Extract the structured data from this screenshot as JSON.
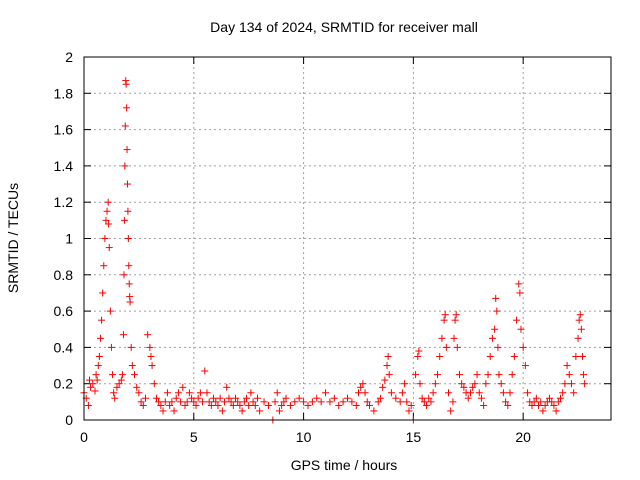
{
  "chart_data": {
    "type": "scatter",
    "title": "Day 134 of 2024, SRMTID for receiver mall",
    "xlabel": "GPS time / hours",
    "ylabel": "SRMTID / TECUs",
    "xlim": [
      0,
      24
    ],
    "ylim": [
      0,
      2
    ],
    "x_ticks": [
      0,
      5,
      10,
      15,
      20
    ],
    "y_ticks": [
      0,
      0.2,
      0.4,
      0.6,
      0.8,
      1,
      1.2,
      1.4,
      1.6,
      1.8,
      2
    ],
    "x_tick_labels": [
      "0",
      "5",
      "10",
      "15",
      "20"
    ],
    "y_tick_labels": [
      "0",
      "0.2",
      "0.4",
      "0.6",
      "0.8",
      "1",
      "1.2",
      "1.4",
      "1.6",
      "1.8",
      "2"
    ],
    "grid": true,
    "marker": "plus",
    "color": "#ff0000",
    "series": [
      {
        "name": "SRMTID",
        "points": [
          [
            0.0,
            0.15
          ],
          [
            0.1,
            0.12
          ],
          [
            0.2,
            0.08
          ],
          [
            0.25,
            0.22
          ],
          [
            0.3,
            0.18
          ],
          [
            0.4,
            0.2
          ],
          [
            0.5,
            0.16
          ],
          [
            0.55,
            0.25
          ],
          [
            0.6,
            0.22
          ],
          [
            0.65,
            0.3
          ],
          [
            0.7,
            0.35
          ],
          [
            0.75,
            0.45
          ],
          [
            0.8,
            0.55
          ],
          [
            0.85,
            0.7
          ],
          [
            0.9,
            0.85
          ],
          [
            0.95,
            1.0
          ],
          [
            1.0,
            1.1
          ],
          [
            1.05,
            1.15
          ],
          [
            1.1,
            1.2
          ],
          [
            1.12,
            1.08
          ],
          [
            1.15,
            0.95
          ],
          [
            1.2,
            0.6
          ],
          [
            1.25,
            0.4
          ],
          [
            1.3,
            0.25
          ],
          [
            1.35,
            0.15
          ],
          [
            1.4,
            0.12
          ],
          [
            1.5,
            0.18
          ],
          [
            1.6,
            0.2
          ],
          [
            1.7,
            0.22
          ],
          [
            1.75,
            0.25
          ],
          [
            1.8,
            0.47
          ],
          [
            1.82,
            0.8
          ],
          [
            1.84,
            1.1
          ],
          [
            1.86,
            1.4
          ],
          [
            1.88,
            1.62
          ],
          [
            1.9,
            1.87
          ],
          [
            1.92,
            1.85
          ],
          [
            1.94,
            1.72
          ],
          [
            1.96,
            1.49
          ],
          [
            1.98,
            1.3
          ],
          [
            2.0,
            1.15
          ],
          [
            2.02,
            1.0
          ],
          [
            2.04,
            0.85
          ],
          [
            2.06,
            0.75
          ],
          [
            2.08,
            0.68
          ],
          [
            2.1,
            0.65
          ],
          [
            2.15,
            0.4
          ],
          [
            2.2,
            0.3
          ],
          [
            2.3,
            0.25
          ],
          [
            2.4,
            0.18
          ],
          [
            2.5,
            0.15
          ],
          [
            2.6,
            0.1
          ],
          [
            2.7,
            0.08
          ],
          [
            2.8,
            0.12
          ],
          [
            2.9,
            0.47
          ],
          [
            3.0,
            0.4
          ],
          [
            3.05,
            0.35
          ],
          [
            3.1,
            0.3
          ],
          [
            3.2,
            0.2
          ],
          [
            3.3,
            0.12
          ],
          [
            3.4,
            0.1
          ],
          [
            3.5,
            0.08
          ],
          [
            3.6,
            0.05
          ],
          [
            3.7,
            0.1
          ],
          [
            3.8,
            0.15
          ],
          [
            3.9,
            0.08
          ],
          [
            4.0,
            0.1
          ],
          [
            4.1,
            0.05
          ],
          [
            4.2,
            0.12
          ],
          [
            4.3,
            0.15
          ],
          [
            4.4,
            0.1
          ],
          [
            4.5,
            0.18
          ],
          [
            4.6,
            0.08
          ],
          [
            4.7,
            0.1
          ],
          [
            4.8,
            0.15
          ],
          [
            4.9,
            0.12
          ],
          [
            5.0,
            0.1
          ],
          [
            5.1,
            0.08
          ],
          [
            5.2,
            0.12
          ],
          [
            5.3,
            0.15
          ],
          [
            5.4,
            0.1
          ],
          [
            5.5,
            0.27
          ],
          [
            5.6,
            0.15
          ],
          [
            5.7,
            0.1
          ],
          [
            5.8,
            0.08
          ],
          [
            5.9,
            0.12
          ],
          [
            6.0,
            0.1
          ],
          [
            6.1,
            0.08
          ],
          [
            6.2,
            0.12
          ],
          [
            6.3,
            0.05
          ],
          [
            6.4,
            0.1
          ],
          [
            6.5,
            0.18
          ],
          [
            6.6,
            0.12
          ],
          [
            6.7,
            0.1
          ],
          [
            6.8,
            0.08
          ],
          [
            6.9,
            0.12
          ],
          [
            7.0,
            0.1
          ],
          [
            7.1,
            0.08
          ],
          [
            7.2,
            0.05
          ],
          [
            7.3,
            0.1
          ],
          [
            7.4,
            0.12
          ],
          [
            7.5,
            0.08
          ],
          [
            7.6,
            0.15
          ],
          [
            7.7,
            0.1
          ],
          [
            7.8,
            0.08
          ],
          [
            7.9,
            0.12
          ],
          [
            8.0,
            0.05
          ],
          [
            8.2,
            0.1
          ],
          [
            8.4,
            0.08
          ],
          [
            8.6,
            0.0
          ],
          [
            8.7,
            0.1
          ],
          [
            8.8,
            0.15
          ],
          [
            8.9,
            0.05
          ],
          [
            9.0,
            0.08
          ],
          [
            9.1,
            0.1
          ],
          [
            9.2,
            0.12
          ],
          [
            9.4,
            0.08
          ],
          [
            9.6,
            0.1
          ],
          [
            9.8,
            0.12
          ],
          [
            10.0,
            0.1
          ],
          [
            10.2,
            0.08
          ],
          [
            10.4,
            0.1
          ],
          [
            10.6,
            0.12
          ],
          [
            10.8,
            0.1
          ],
          [
            11.0,
            0.15
          ],
          [
            11.2,
            0.1
          ],
          [
            11.4,
            0.12
          ],
          [
            11.6,
            0.08
          ],
          [
            11.8,
            0.1
          ],
          [
            12.0,
            0.12
          ],
          [
            12.2,
            0.1
          ],
          [
            12.4,
            0.08
          ],
          [
            12.5,
            0.15
          ],
          [
            12.6,
            0.18
          ],
          [
            12.7,
            0.2
          ],
          [
            12.8,
            0.15
          ],
          [
            12.9,
            0.1
          ],
          [
            13.0,
            0.08
          ],
          [
            13.2,
            0.05
          ],
          [
            13.4,
            0.1
          ],
          [
            13.5,
            0.12
          ],
          [
            13.6,
            0.18
          ],
          [
            13.7,
            0.22
          ],
          [
            13.8,
            0.3
          ],
          [
            13.85,
            0.35
          ],
          [
            13.9,
            0.25
          ],
          [
            14.0,
            0.15
          ],
          [
            14.2,
            0.12
          ],
          [
            14.4,
            0.1
          ],
          [
            14.5,
            0.15
          ],
          [
            14.6,
            0.2
          ],
          [
            14.7,
            0.1
          ],
          [
            14.8,
            0.05
          ],
          [
            14.9,
            0.08
          ],
          [
            15.0,
            0.0
          ],
          [
            15.1,
            0.25
          ],
          [
            15.2,
            0.35
          ],
          [
            15.25,
            0.38
          ],
          [
            15.3,
            0.2
          ],
          [
            15.4,
            0.12
          ],
          [
            15.5,
            0.1
          ],
          [
            15.6,
            0.08
          ],
          [
            15.7,
            0.12
          ],
          [
            15.8,
            0.1
          ],
          [
            15.9,
            0.15
          ],
          [
            16.0,
            0.2
          ],
          [
            16.1,
            0.25
          ],
          [
            16.2,
            0.35
          ],
          [
            16.3,
            0.45
          ],
          [
            16.4,
            0.55
          ],
          [
            16.45,
            0.58
          ],
          [
            16.5,
            0.4
          ],
          [
            16.6,
            0.15
          ],
          [
            16.7,
            0.05
          ],
          [
            16.8,
            0.1
          ],
          [
            16.85,
            0.45
          ],
          [
            16.9,
            0.55
          ],
          [
            16.95,
            0.58
          ],
          [
            17.0,
            0.4
          ],
          [
            17.1,
            0.25
          ],
          [
            17.2,
            0.2
          ],
          [
            17.3,
            0.18
          ],
          [
            17.4,
            0.15
          ],
          [
            17.5,
            0.12
          ],
          [
            17.6,
            0.15
          ],
          [
            17.7,
            0.18
          ],
          [
            17.8,
            0.2
          ],
          [
            17.9,
            0.25
          ],
          [
            18.0,
            0.15
          ],
          [
            18.1,
            0.12
          ],
          [
            18.2,
            0.08
          ],
          [
            18.3,
            0.2
          ],
          [
            18.4,
            0.25
          ],
          [
            18.5,
            0.35
          ],
          [
            18.6,
            0.45
          ],
          [
            18.7,
            0.5
          ],
          [
            18.75,
            0.67
          ],
          [
            18.8,
            0.6
          ],
          [
            18.85,
            0.4
          ],
          [
            18.9,
            0.25
          ],
          [
            19.0,
            0.2
          ],
          [
            19.1,
            0.15
          ],
          [
            19.2,
            0.1
          ],
          [
            19.3,
            0.08
          ],
          [
            19.4,
            0.15
          ],
          [
            19.5,
            0.25
          ],
          [
            19.6,
            0.35
          ],
          [
            19.7,
            0.55
          ],
          [
            19.8,
            0.75
          ],
          [
            19.85,
            0.7
          ],
          [
            19.9,
            0.5
          ],
          [
            20.0,
            0.4
          ],
          [
            20.1,
            0.3
          ],
          [
            20.2,
            0.15
          ],
          [
            20.3,
            0.1
          ],
          [
            20.4,
            0.08
          ],
          [
            20.5,
            0.1
          ],
          [
            20.6,
            0.12
          ],
          [
            20.7,
            0.08
          ],
          [
            20.8,
            0.1
          ],
          [
            20.9,
            0.05
          ],
          [
            21.0,
            0.08
          ],
          [
            21.1,
            0.1
          ],
          [
            21.2,
            0.12
          ],
          [
            21.3,
            0.1
          ],
          [
            21.4,
            0.08
          ],
          [
            21.5,
            0.05
          ],
          [
            21.6,
            0.1
          ],
          [
            21.7,
            0.12
          ],
          [
            21.8,
            0.15
          ],
          [
            21.9,
            0.2
          ],
          [
            22.0,
            0.3
          ],
          [
            22.1,
            0.25
          ],
          [
            22.2,
            0.2
          ],
          [
            22.3,
            0.15
          ],
          [
            22.4,
            0.35
          ],
          [
            22.5,
            0.45
          ],
          [
            22.55,
            0.55
          ],
          [
            22.6,
            0.58
          ],
          [
            22.65,
            0.5
          ],
          [
            22.7,
            0.35
          ],
          [
            22.75,
            0.25
          ],
          [
            22.8,
            0.2
          ]
        ]
      }
    ]
  }
}
